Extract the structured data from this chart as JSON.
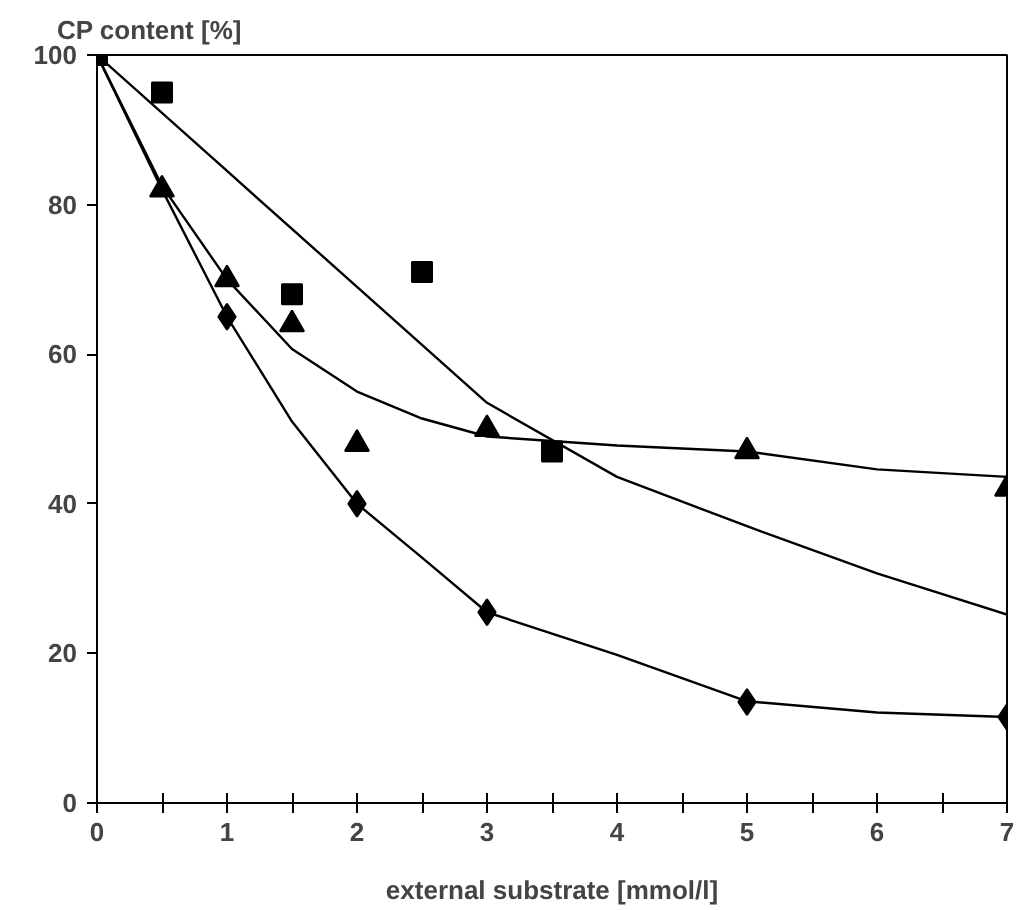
{
  "chart_data": {
    "type": "scatter",
    "ylabel": "CP content [%]",
    "xlabel": "external substrate [mmol/l]",
    "xlim": [
      0,
      7
    ],
    "ylim": [
      0,
      100
    ],
    "xticks": [
      0,
      {
        "value": 0.5,
        "label": null
      },
      1,
      {
        "value": 1.5,
        "label": null
      },
      2,
      {
        "value": 2.5,
        "label": null
      },
      3,
      {
        "value": 3.5,
        "label": null
      },
      4,
      {
        "value": 4.5,
        "label": null
      },
      5,
      {
        "value": 5.5,
        "label": null
      },
      6,
      {
        "value": 6.5,
        "label": null
      },
      7
    ],
    "yticks": [
      0,
      20,
      40,
      60,
      80,
      100
    ],
    "series": [
      {
        "marker": "square",
        "color": "#000000",
        "x": [
          0,
          0.5,
          1.5,
          2.5,
          3.5
        ],
        "values": [
          100,
          95,
          68,
          71,
          47
        ]
      },
      {
        "marker": "triangle",
        "color": "#000000",
        "x": [
          0.5,
          1,
          1.5,
          2,
          3,
          5,
          7
        ],
        "values": [
          82,
          70,
          64,
          48,
          50,
          47,
          42
        ]
      },
      {
        "marker": "diamond",
        "color": "#000000",
        "x": [
          1,
          2,
          3,
          5,
          7
        ],
        "values": [
          65,
          40,
          25.5,
          13.5,
          11.5
        ]
      },
      {
        "type": "line",
        "marker": "none",
        "color": "#000000",
        "x": [
          0,
          1,
          2,
          3,
          4,
          5,
          6,
          7
        ],
        "values": [
          100,
          84.5,
          69,
          53.5,
          43.6,
          37,
          30.7,
          25.2
        ]
      },
      {
        "type": "line",
        "marker": "none",
        "color": "#000000",
        "x": [
          0,
          0.5,
          1,
          1.5,
          2,
          2.5,
          3,
          4,
          5,
          6,
          7
        ],
        "values": [
          100,
          82.5,
          70,
          60.7,
          55,
          51.4,
          49,
          47.8,
          47,
          44.6,
          43.6
        ]
      },
      {
        "type": "line",
        "marker": "none",
        "color": "#000000",
        "x": [
          0,
          0.5,
          1,
          1.5,
          2,
          2.5,
          3,
          4,
          5,
          6,
          7
        ],
        "values": [
          100,
          82,
          65,
          51,
          40,
          32.8,
          25.5,
          19.8,
          13.6,
          12.1,
          11.5
        ]
      }
    ]
  }
}
